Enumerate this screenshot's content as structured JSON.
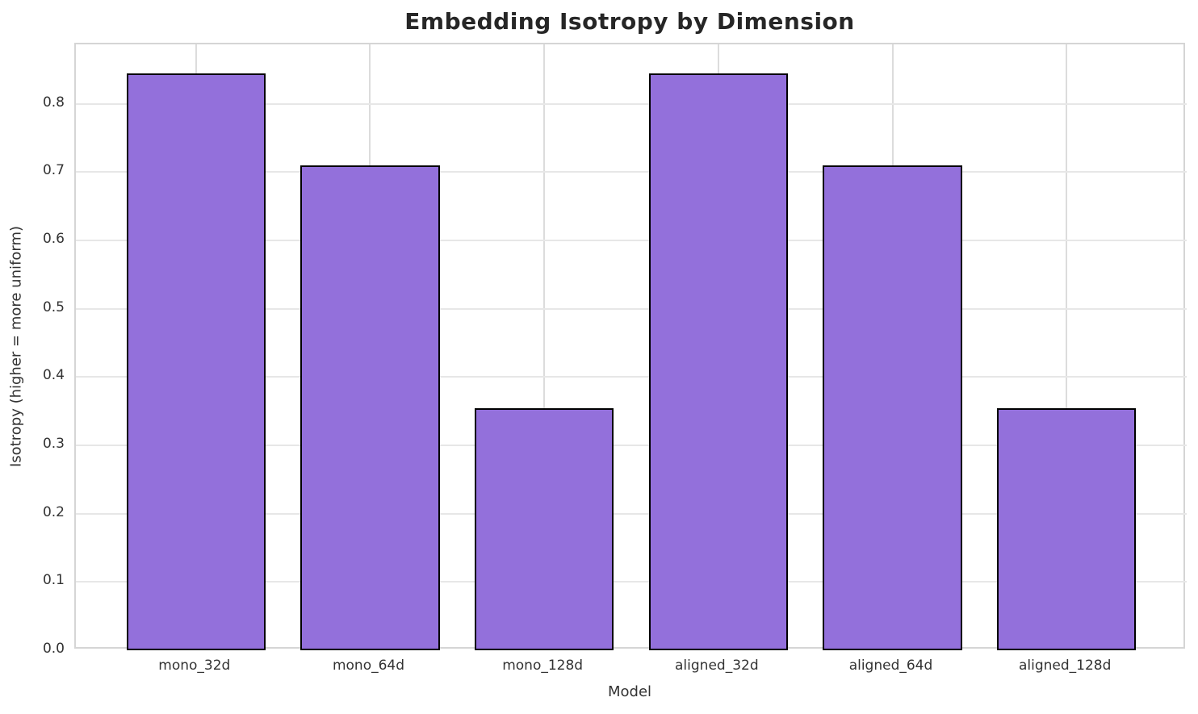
{
  "chart_data": {
    "type": "bar",
    "title": "Embedding Isotropy by Dimension",
    "xlabel": "Model",
    "ylabel": "Isotropy (higher = more uniform)",
    "categories": [
      "mono_32d",
      "mono_64d",
      "mono_128d",
      "aligned_32d",
      "aligned_64d",
      "aligned_128d"
    ],
    "values": [
      0.845,
      0.71,
      0.354,
      0.845,
      0.71,
      0.354
    ],
    "ylim": [
      0,
      0.887
    ],
    "xlim": [
      -0.69,
      5.69
    ],
    "bar_width": 0.8,
    "yticks": [
      "0.0",
      "0.1",
      "0.2",
      "0.3",
      "0.4",
      "0.5",
      "0.6",
      "0.7",
      "0.8"
    ],
    "grid": true,
    "legend": "none",
    "bar_color": "#9370DB",
    "bar_edge_color": "#000000"
  }
}
